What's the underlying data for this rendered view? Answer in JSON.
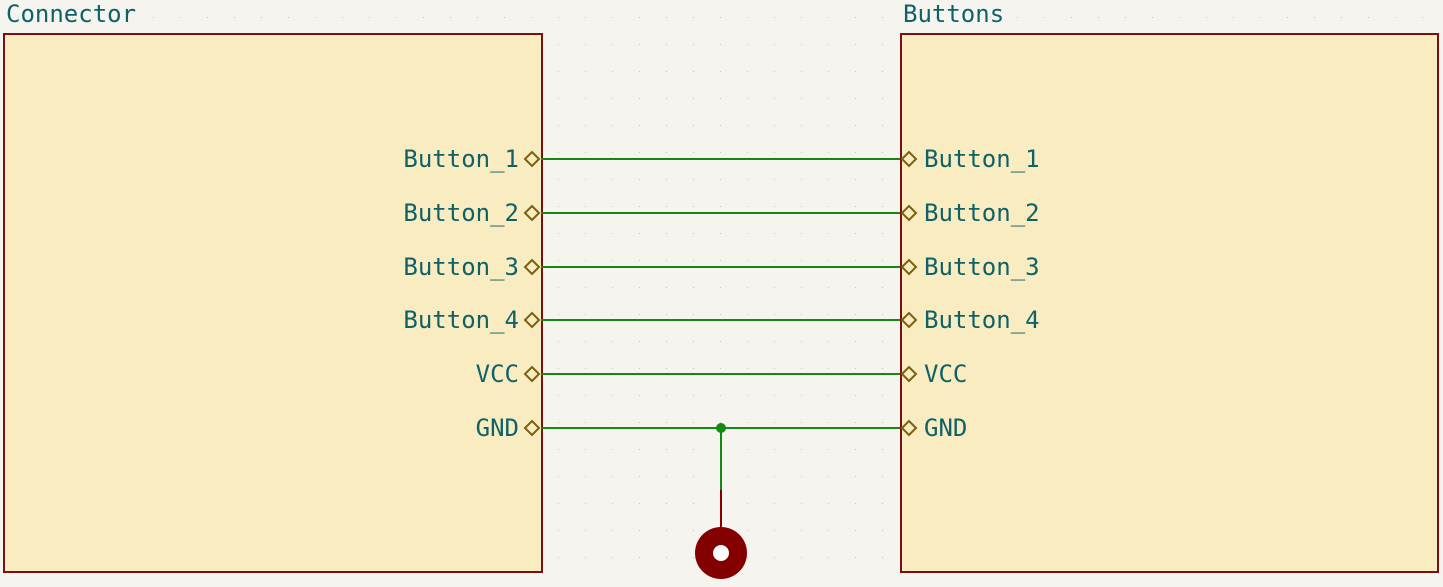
{
  "colors": {
    "background": "#f5f4ef",
    "grid_dot": "#c8c6bc",
    "sheet_fill": "#f8ecc0",
    "sheet_border": "#7a1010",
    "label_text": "#0f6168",
    "pin_marker": "#7a6010",
    "wire": "#128a12",
    "junction": "#128a12",
    "ground_symbol": "#840000"
  },
  "sheets": {
    "connector": {
      "name": "Connector"
    },
    "buttons": {
      "name": "Buttons"
    }
  },
  "pins": [
    "Button_1",
    "Button_2",
    "Button_3",
    "Button_4",
    "VCC",
    "GND"
  ],
  "ground_symbol": {
    "icon": "ground-power-port-icon",
    "net": "GND"
  }
}
